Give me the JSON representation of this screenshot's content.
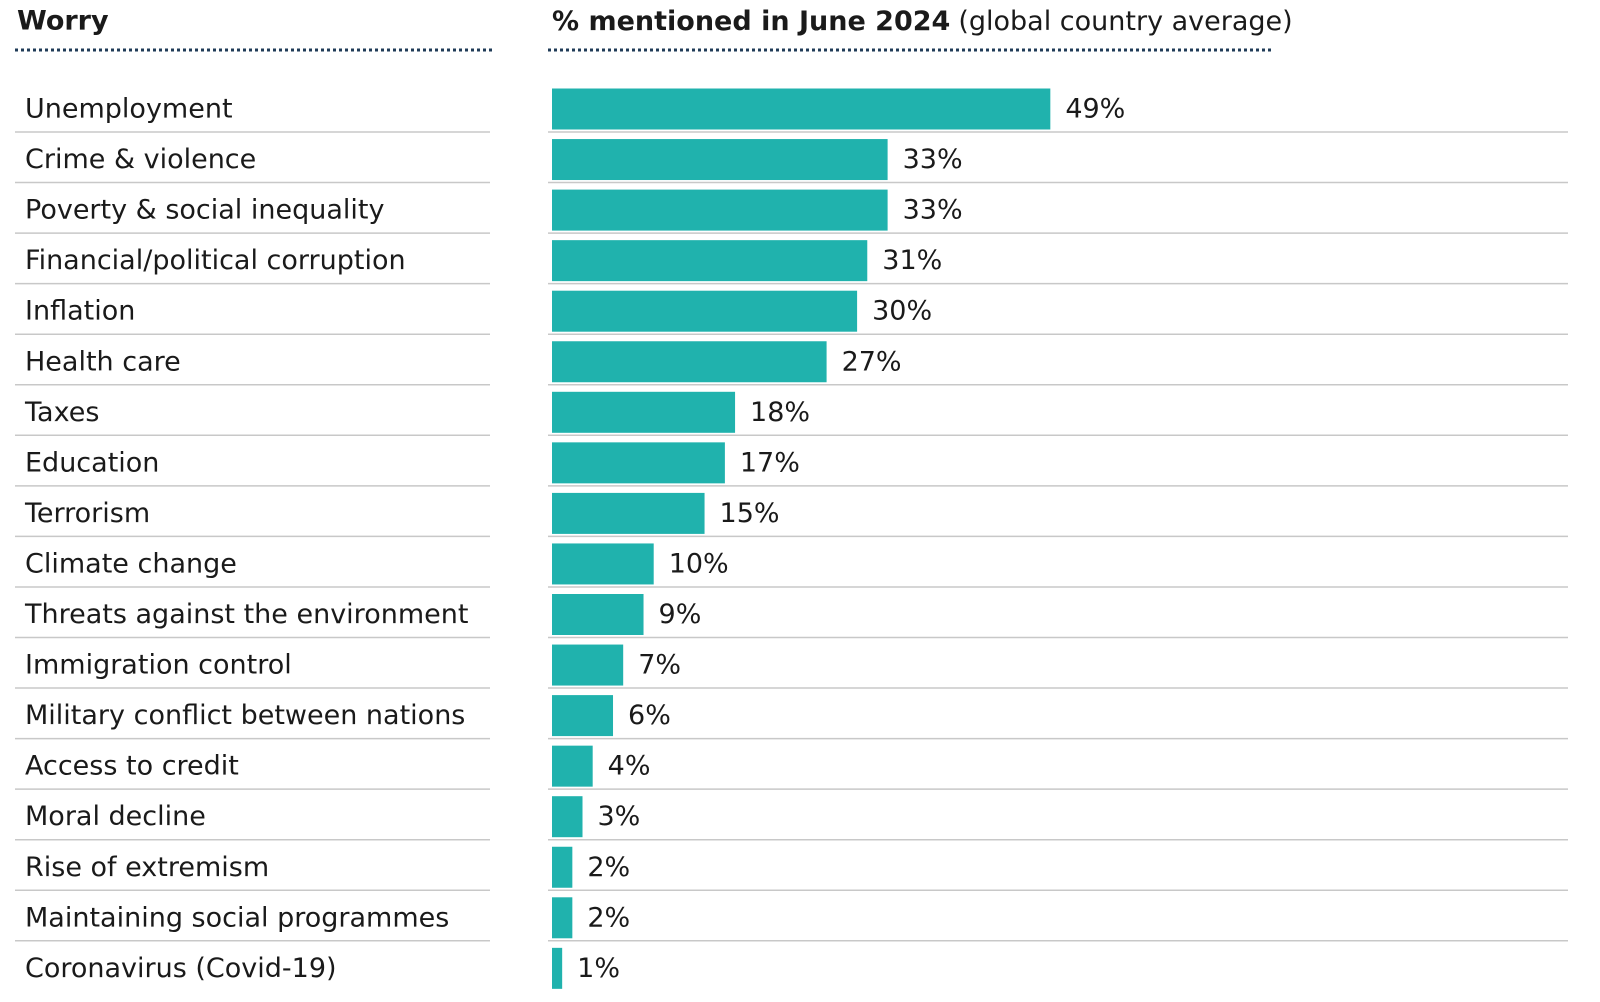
{
  "chart_data": {
    "type": "bar",
    "column_label": "Worry",
    "title": "% mentioned in June 2024",
    "subtitle": "(global country average)",
    "categories": [
      "Unemployment",
      "Crime & violence",
      "Poverty & social inequality",
      "Financial/political corruption",
      "Inflation",
      "Health care",
      "Taxes",
      "Education",
      "Terrorism",
      "Climate change",
      "Threats against the environment",
      "Immigration control",
      "Military conflict between nations",
      "Access to credit",
      "Moral decline",
      "Rise of extremism",
      "Maintaining social programmes",
      "Coronavirus (Covid-19)"
    ],
    "values": [
      49,
      33,
      33,
      31,
      30,
      27,
      18,
      17,
      15,
      10,
      9,
      7,
      6,
      4,
      3,
      2,
      2,
      1
    ],
    "value_labels": [
      "49%",
      "33%",
      "33%",
      "31%",
      "30%",
      "27%",
      "18%",
      "17%",
      "15%",
      "10%",
      "9%",
      "7%",
      "6%",
      "4%",
      "3%",
      "2%",
      "2%",
      "1%"
    ],
    "color": "#20b2ad"
  }
}
